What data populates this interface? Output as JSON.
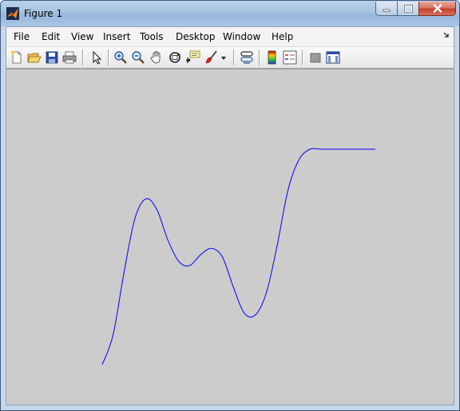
{
  "window": {
    "title": "Figure 1",
    "app_icon": "matlab-icon",
    "accent_color": "#b9d1ea",
    "close_color": "#c4402b"
  },
  "menubar": {
    "items": [
      "File",
      "Edit",
      "View",
      "Insert",
      "Tools",
      "Desktop",
      "Window",
      "Help"
    ],
    "overflow_icon": "dock-arrow-icon"
  },
  "toolbar": {
    "buttons": [
      {
        "icon": "new-figure-icon"
      },
      {
        "icon": "open-file-icon"
      },
      {
        "icon": "save-icon"
      },
      {
        "icon": "print-icon"
      },
      {
        "icon": "edit-plot-arrow-icon"
      },
      {
        "icon": "zoom-in-icon"
      },
      {
        "icon": "zoom-out-icon"
      },
      {
        "icon": "pan-hand-icon"
      },
      {
        "icon": "rotate-3d-icon"
      },
      {
        "icon": "data-cursor-icon"
      },
      {
        "icon": "brush-icon"
      },
      {
        "icon": "link-plot-icon"
      },
      {
        "icon": "colorbar-icon"
      },
      {
        "icon": "legend-icon"
      },
      {
        "icon": "hide-plot-tools-icon"
      },
      {
        "icon": "show-plot-tools-icon"
      }
    ]
  },
  "figure": {
    "background_color": "#cccccc",
    "line_color": "#0000ff"
  },
  "chart_data": {
    "type": "line",
    "grid": false,
    "axes_visible": false,
    "xlim": [
      0,
      1
    ],
    "ylim": [
      0,
      1
    ],
    "series": [
      {
        "color": "#0000ff",
        "x": [
          0.0,
          0.04,
          0.08,
          0.12,
          0.16,
          0.2,
          0.24,
          0.28,
          0.32,
          0.36,
          0.4,
          0.44,
          0.48,
          0.52,
          0.56,
          0.6,
          0.64,
          0.68,
          0.72,
          0.76,
          0.8,
          0.84,
          0.88,
          0.92,
          0.96,
          1.0
        ],
        "y": [
          0.0,
          0.14,
          0.43,
          0.68,
          0.77,
          0.72,
          0.58,
          0.48,
          0.46,
          0.51,
          0.54,
          0.5,
          0.36,
          0.24,
          0.23,
          0.33,
          0.55,
          0.81,
          0.95,
          1.0,
          1.0,
          1.0,
          1.0,
          1.0,
          1.0,
          1.0
        ]
      }
    ]
  }
}
